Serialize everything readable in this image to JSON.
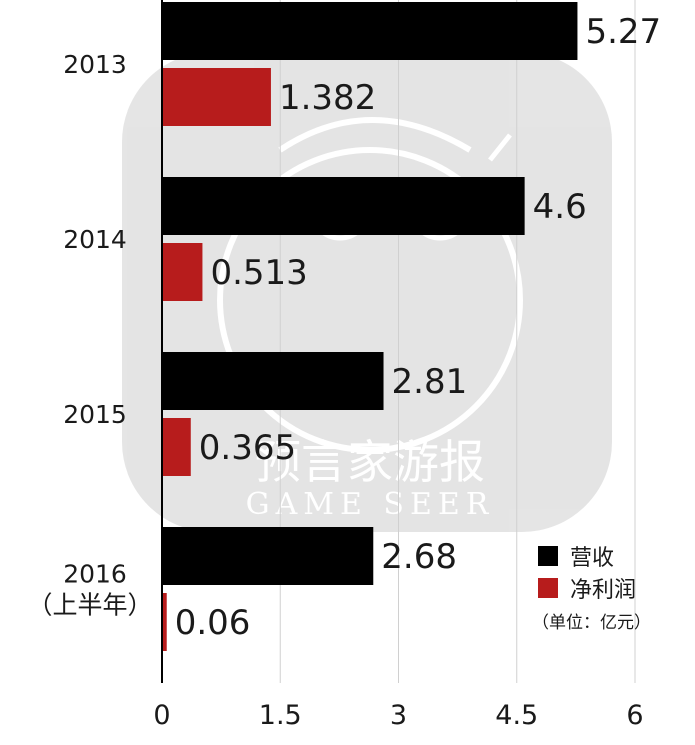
{
  "chart_data": {
    "type": "bar",
    "orientation": "horizontal",
    "categories": [
      [
        "2013"
      ],
      [
        "2014"
      ],
      [
        "2015"
      ],
      [
        "2016",
        "（上半年）"
      ]
    ],
    "series": [
      {
        "name": "营收",
        "color": "#000000",
        "values": [
          5.27,
          4.6,
          2.81,
          2.68
        ],
        "labels": [
          "5.27",
          "4.6",
          "2.81",
          "2.68"
        ]
      },
      {
        "name": "净利润",
        "color": "#b71c1c",
        "values": [
          1.382,
          0.513,
          0.365,
          0.06
        ],
        "labels": [
          "1.382",
          "0.513",
          "0.365",
          "0.06"
        ]
      }
    ],
    "xlim": [
      0,
      6
    ],
    "xticks": [
      "0",
      "1.5",
      "3",
      "4.5",
      "6"
    ],
    "unit": "（单位：亿元）",
    "grid": "vertical",
    "legend_position": "bottom-right"
  },
  "watermark": {
    "text": "预言家游报",
    "subtext": "GAME SEER"
  }
}
